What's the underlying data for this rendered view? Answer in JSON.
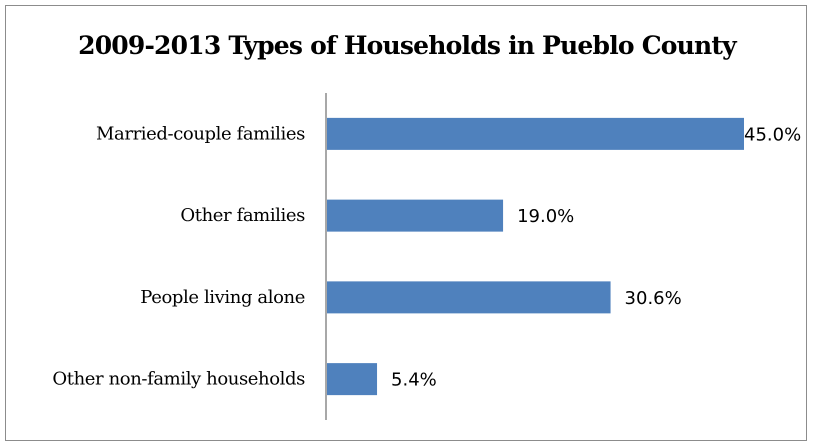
{
  "chart_data": {
    "type": "bar",
    "orientation": "horizontal",
    "title": "2009-2013 Types of Households in Pueblo County",
    "xlabel": "",
    "ylabel": "",
    "categories": [
      "Married-couple families",
      "Other families",
      "People living alone",
      "Other non-family households"
    ],
    "values": [
      45.0,
      19.0,
      30.6,
      5.4
    ],
    "value_labels": [
      "45.0%",
      "19.0%",
      "30.6%",
      "5.4%"
    ],
    "xlim": [
      0,
      45
    ],
    "bar_color": "#4f81bd",
    "grid": false,
    "legend": "none"
  }
}
